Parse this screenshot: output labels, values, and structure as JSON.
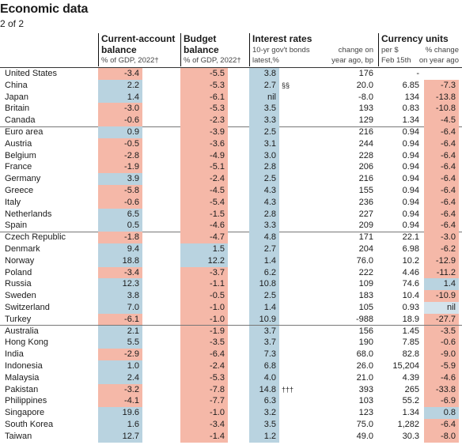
{
  "title": "Economic data",
  "subtitle": "2 of 2",
  "headers": {
    "current_account": {
      "line1": "Current-account",
      "line2": "balance",
      "sub": "% of GDP, 2022†"
    },
    "budget": {
      "line1": "Budget",
      "line2": "balance",
      "sub": "% of GDP, 2022†"
    },
    "interest": {
      "line1": "Interest rates",
      "sub1": "10-yr gov't bonds",
      "sub1b": "latest,%",
      "sub2": "change on",
      "sub2b": "year ago, bp"
    },
    "currency": {
      "line1": "Currency units",
      "sub1": "per $",
      "sub1b": "Feb 15th",
      "sub2": "% change",
      "sub2b": "on year ago"
    }
  },
  "colors": {
    "positive": "#b9d3e0",
    "negative": "#f5b8a8",
    "neutral": "#d4e3ec"
  },
  "rows": [
    {
      "country": "United States",
      "ca": "-3.4",
      "bud": "-5.5",
      "bond": "3.8",
      "note": "",
      "chg": "176",
      "fx": "-",
      "fxchg": "",
      "ca_s": "n",
      "bud_s": "n",
      "bond_s": "p",
      "fx_s": ""
    },
    {
      "country": "China",
      "ca": "2.2",
      "bud": "-5.3",
      "bond": "2.7",
      "note": "§§",
      "chg": "20.0",
      "fx": "6.85",
      "fxchg": "-7.3",
      "ca_s": "p",
      "bud_s": "n",
      "bond_s": "p",
      "fx_s": "n"
    },
    {
      "country": "Japan",
      "ca": "1.4",
      "bud": "-6.1",
      "bond": "nil",
      "note": "",
      "chg": "-8.0",
      "fx": "134",
      "fxchg": "-13.8",
      "ca_s": "p",
      "bud_s": "n",
      "bond_s": "p",
      "fx_s": "n"
    },
    {
      "country": "Britain",
      "ca": "-3.0",
      "bud": "-5.3",
      "bond": "3.5",
      "note": "",
      "chg": "193",
      "fx": "0.83",
      "fxchg": "-10.8",
      "ca_s": "n",
      "bud_s": "n",
      "bond_s": "p",
      "fx_s": "n"
    },
    {
      "country": "Canada",
      "ca": "-0.6",
      "bud": "-2.3",
      "bond": "3.3",
      "note": "",
      "chg": "129",
      "fx": "1.34",
      "fxchg": "-4.5",
      "ca_s": "n",
      "bud_s": "n",
      "bond_s": "p",
      "fx_s": "n",
      "sep": true
    },
    {
      "country": "Euro area",
      "ca": "0.9",
      "bud": "-3.9",
      "bond": "2.5",
      "note": "",
      "chg": "216",
      "fx": "0.94",
      "fxchg": "-6.4",
      "ca_s": "p",
      "bud_s": "n",
      "bond_s": "p",
      "fx_s": "n"
    },
    {
      "country": "Austria",
      "ca": "-0.5",
      "bud": "-3.6",
      "bond": "3.1",
      "note": "",
      "chg": "244",
      "fx": "0.94",
      "fxchg": "-6.4",
      "ca_s": "n",
      "bud_s": "n",
      "bond_s": "p",
      "fx_s": "n"
    },
    {
      "country": "Belgium",
      "ca": "-2.8",
      "bud": "-4.9",
      "bond": "3.0",
      "note": "",
      "chg": "228",
      "fx": "0.94",
      "fxchg": "-6.4",
      "ca_s": "n",
      "bud_s": "n",
      "bond_s": "p",
      "fx_s": "n"
    },
    {
      "country": "France",
      "ca": "-1.9",
      "bud": "-5.1",
      "bond": "2.8",
      "note": "",
      "chg": "206",
      "fx": "0.94",
      "fxchg": "-6.4",
      "ca_s": "n",
      "bud_s": "n",
      "bond_s": "p",
      "fx_s": "n"
    },
    {
      "country": "Germany",
      "ca": "3.9",
      "bud": "-2.4",
      "bond": "2.5",
      "note": "",
      "chg": "216",
      "fx": "0.94",
      "fxchg": "-6.4",
      "ca_s": "p",
      "bud_s": "n",
      "bond_s": "p",
      "fx_s": "n"
    },
    {
      "country": "Greece",
      "ca": "-5.8",
      "bud": "-4.5",
      "bond": "4.3",
      "note": "",
      "chg": "155",
      "fx": "0.94",
      "fxchg": "-6.4",
      "ca_s": "n",
      "bud_s": "n",
      "bond_s": "p",
      "fx_s": "n"
    },
    {
      "country": "Italy",
      "ca": "-0.6",
      "bud": "-5.4",
      "bond": "4.3",
      "note": "",
      "chg": "236",
      "fx": "0.94",
      "fxchg": "-6.4",
      "ca_s": "n",
      "bud_s": "n",
      "bond_s": "p",
      "fx_s": "n"
    },
    {
      "country": "Netherlands",
      "ca": "6.5",
      "bud": "-1.5",
      "bond": "2.8",
      "note": "",
      "chg": "227",
      "fx": "0.94",
      "fxchg": "-6.4",
      "ca_s": "p",
      "bud_s": "n",
      "bond_s": "p",
      "fx_s": "n"
    },
    {
      "country": "Spain",
      "ca": "0.5",
      "bud": "-4.6",
      "bond": "3.3",
      "note": "",
      "chg": "209",
      "fx": "0.94",
      "fxchg": "-6.4",
      "ca_s": "p",
      "bud_s": "n",
      "bond_s": "p",
      "fx_s": "n",
      "sep": true
    },
    {
      "country": "Czech Republic",
      "ca": "-1.8",
      "bud": "-4.7",
      "bond": "4.8",
      "note": "",
      "chg": "171",
      "fx": "22.1",
      "fxchg": "-3.0",
      "ca_s": "n",
      "bud_s": "n",
      "bond_s": "p",
      "fx_s": "n"
    },
    {
      "country": "Denmark",
      "ca": "9.4",
      "bud": "1.5",
      "bond": "2.7",
      "note": "",
      "chg": "204",
      "fx": "6.98",
      "fxchg": "-6.2",
      "ca_s": "p",
      "bud_s": "p",
      "bond_s": "p",
      "fx_s": "n"
    },
    {
      "country": "Norway",
      "ca": "18.8",
      "bud": "12.2",
      "bond": "1.4",
      "note": "",
      "chg": "76.0",
      "fx": "10.2",
      "fxchg": "-12.9",
      "ca_s": "p",
      "bud_s": "p",
      "bond_s": "p",
      "fx_s": "n"
    },
    {
      "country": "Poland",
      "ca": "-3.4",
      "bud": "-3.7",
      "bond": "6.2",
      "note": "",
      "chg": "222",
      "fx": "4.46",
      "fxchg": "-11.2",
      "ca_s": "n",
      "bud_s": "n",
      "bond_s": "p",
      "fx_s": "n"
    },
    {
      "country": "Russia",
      "ca": "12.3",
      "bud": "-1.1",
      "bond": "10.8",
      "note": "",
      "chg": "109",
      "fx": "74.6",
      "fxchg": "1.4",
      "ca_s": "p",
      "bud_s": "n",
      "bond_s": "p",
      "fx_s": "p"
    },
    {
      "country": "Sweden",
      "ca": "3.8",
      "bud": "-0.5",
      "bond": "2.5",
      "note": "",
      "chg": "183",
      "fx": "10.4",
      "fxchg": "-10.9",
      "ca_s": "p",
      "bud_s": "n",
      "bond_s": "p",
      "fx_s": "n"
    },
    {
      "country": "Switzerland",
      "ca": "7.0",
      "bud": "-1.0",
      "bond": "1.4",
      "note": "",
      "chg": "105",
      "fx": "0.93",
      "fxchg": "nil",
      "ca_s": "p",
      "bud_s": "n",
      "bond_s": "p",
      "fx_s": "z"
    },
    {
      "country": "Turkey",
      "ca": "-6.1",
      "bud": "-1.0",
      "bond": "10.9",
      "note": "",
      "chg": "-988",
      "fx": "18.9",
      "fxchg": "-27.7",
      "ca_s": "n",
      "bud_s": "n",
      "bond_s": "p",
      "fx_s": "n",
      "sep": true
    },
    {
      "country": "Australia",
      "ca": "2.1",
      "bud": "-1.9",
      "bond": "3.7",
      "note": "",
      "chg": "156",
      "fx": "1.45",
      "fxchg": "-3.5",
      "ca_s": "p",
      "bud_s": "n",
      "bond_s": "p",
      "fx_s": "n"
    },
    {
      "country": "Hong Kong",
      "ca": "5.5",
      "bud": "-3.5",
      "bond": "3.7",
      "note": "",
      "chg": "190",
      "fx": "7.85",
      "fxchg": "-0.6",
      "ca_s": "p",
      "bud_s": "n",
      "bond_s": "p",
      "fx_s": "n"
    },
    {
      "country": "India",
      "ca": "-2.9",
      "bud": "-6.4",
      "bond": "7.3",
      "note": "",
      "chg": "68.0",
      "fx": "82.8",
      "fxchg": "-9.0",
      "ca_s": "n",
      "bud_s": "n",
      "bond_s": "p",
      "fx_s": "n"
    },
    {
      "country": "Indonesia",
      "ca": "1.0",
      "bud": "-2.4",
      "bond": "6.8",
      "note": "",
      "chg": "26.0",
      "fx": "15,204",
      "fxchg": "-5.9",
      "ca_s": "p",
      "bud_s": "n",
      "bond_s": "p",
      "fx_s": "n"
    },
    {
      "country": "Malaysia",
      "ca": "2.4",
      "bud": "-5.3",
      "bond": "4.0",
      "note": "",
      "chg": "21.0",
      "fx": "4.39",
      "fxchg": "-4.6",
      "ca_s": "p",
      "bud_s": "n",
      "bond_s": "p",
      "fx_s": "n"
    },
    {
      "country": "Pakistan",
      "ca": "-3.2",
      "bud": "-7.8",
      "bond": "14.8",
      "note": "†††",
      "chg": "393",
      "fx": "265",
      "fxchg": "-33.8",
      "ca_s": "n",
      "bud_s": "n",
      "bond_s": "p",
      "fx_s": "n"
    },
    {
      "country": "Philippines",
      "ca": "-4.1",
      "bud": "-7.7",
      "bond": "6.3",
      "note": "",
      "chg": "103",
      "fx": "55.2",
      "fxchg": "-6.9",
      "ca_s": "n",
      "bud_s": "n",
      "bond_s": "p",
      "fx_s": "n"
    },
    {
      "country": "Singapore",
      "ca": "19.6",
      "bud": "-1.0",
      "bond": "3.2",
      "note": "",
      "chg": "123",
      "fx": "1.34",
      "fxchg": "0.8",
      "ca_s": "p",
      "bud_s": "n",
      "bond_s": "p",
      "fx_s": "p"
    },
    {
      "country": "South Korea",
      "ca": "1.6",
      "bud": "-3.4",
      "bond": "3.5",
      "note": "",
      "chg": "75.0",
      "fx": "1,282",
      "fxchg": "-6.4",
      "ca_s": "p",
      "bud_s": "n",
      "bond_s": "p",
      "fx_s": "n"
    },
    {
      "country": "Taiwan",
      "ca": "12.7",
      "bud": "-1.4",
      "bond": "1.2",
      "note": "",
      "chg": "49.0",
      "fx": "30.3",
      "fxchg": "-8.0",
      "ca_s": "p",
      "bud_s": "n",
      "bond_s": "p",
      "fx_s": "n"
    }
  ]
}
